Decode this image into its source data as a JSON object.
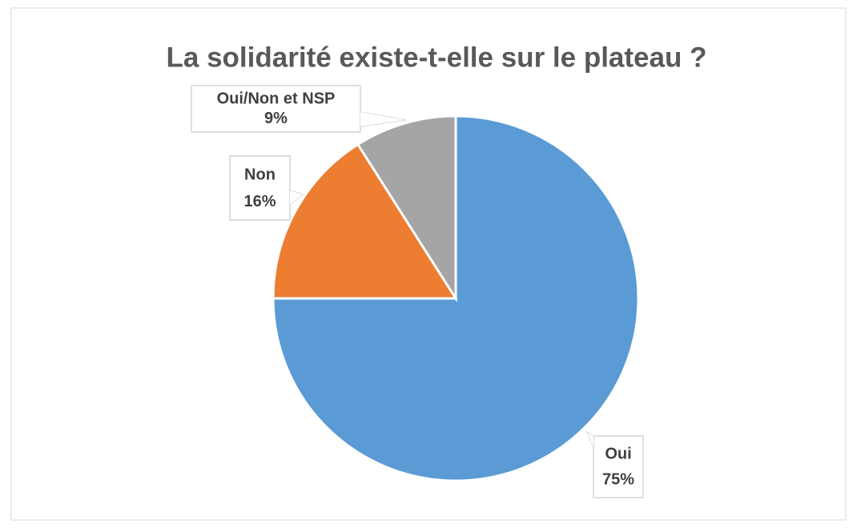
{
  "chart_data": {
    "type": "pie",
    "title": "La solidarité existe-t-elle sur le plateau ?",
    "categories": [
      "Oui",
      "Non",
      "Oui/Non et NSP"
    ],
    "values": [
      75,
      16,
      9
    ],
    "value_labels": [
      "75%",
      "16%",
      "9%"
    ],
    "colors": [
      "#5b9bd5",
      "#ed7d31",
      "#a5a5a5"
    ]
  }
}
